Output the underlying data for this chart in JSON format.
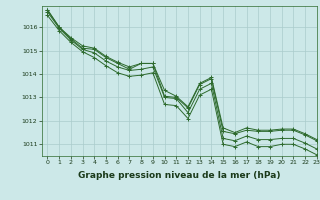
{
  "background_color": "#cce8e8",
  "grid_color": "#aacccc",
  "line_color": "#2d6a2d",
  "marker_color": "#2d6a2d",
  "xlabel": "Graphe pression niveau de la mer (hPa)",
  "xlabel_fontsize": 6.5,
  "xlim": [
    -0.5,
    23
  ],
  "ylim": [
    1010.5,
    1016.9
  ],
  "yticks": [
    1011,
    1012,
    1013,
    1014,
    1015,
    1016
  ],
  "xticks": [
    0,
    1,
    2,
    3,
    4,
    5,
    6,
    7,
    8,
    9,
    10,
    11,
    12,
    13,
    14,
    15,
    16,
    17,
    18,
    19,
    20,
    21,
    22,
    23
  ],
  "series": [
    [
      1016.75,
      1016.0,
      1015.5,
      1015.1,
      1015.05,
      1014.7,
      1014.45,
      1014.2,
      1014.45,
      1014.45,
      1013.05,
      1013.0,
      1012.55,
      1013.55,
      1013.8,
      1011.55,
      1011.45,
      1011.6,
      1011.55,
      1011.55,
      1011.6,
      1011.6,
      1011.4,
      1011.15
    ],
    [
      1016.72,
      1016.0,
      1015.55,
      1015.2,
      1015.1,
      1014.75,
      1014.5,
      1014.3,
      1014.45,
      1014.45,
      1013.3,
      1013.05,
      1012.6,
      1013.6,
      1013.85,
      1011.7,
      1011.5,
      1011.7,
      1011.6,
      1011.6,
      1011.65,
      1011.65,
      1011.45,
      1011.2
    ],
    [
      1016.65,
      1015.95,
      1015.45,
      1015.05,
      1014.9,
      1014.55,
      1014.3,
      1014.15,
      1014.2,
      1014.3,
      1013.0,
      1012.95,
      1012.35,
      1013.35,
      1013.6,
      1011.25,
      1011.15,
      1011.35,
      1011.2,
      1011.2,
      1011.25,
      1011.25,
      1011.05,
      1010.8
    ],
    [
      1016.5,
      1015.85,
      1015.35,
      1014.95,
      1014.7,
      1014.35,
      1014.05,
      1013.9,
      1013.95,
      1014.05,
      1012.7,
      1012.65,
      1012.1,
      1013.1,
      1013.35,
      1011.0,
      1010.9,
      1011.1,
      1010.9,
      1010.9,
      1011.0,
      1011.0,
      1010.8,
      1010.55
    ]
  ]
}
